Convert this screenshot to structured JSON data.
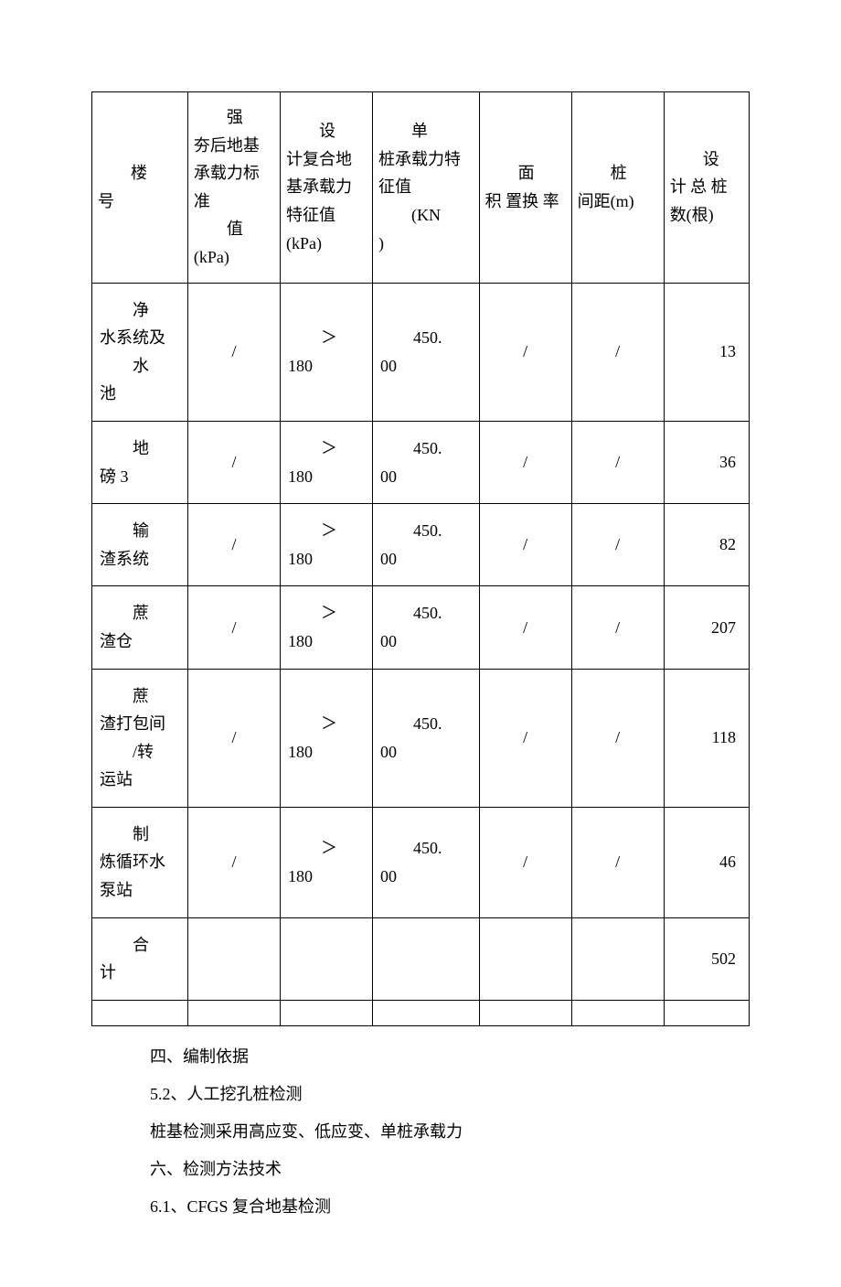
{
  "table": {
    "headers": {
      "col1_line1": "楼",
      "col1_line2": "号",
      "col2_line1": "强",
      "col2_line2": "夯后地基 承载力标准",
      "col2_line3": "值",
      "col2_line4": "(kPa)",
      "col3_line1": "设",
      "col3_line2": "计复合地基承载力 特征值(kPa)",
      "col4_line1": "单",
      "col4_line2": "桩承载力特征值",
      "col4_line3": "(KN",
      "col4_line4": ")",
      "col5_line1": "面",
      "col5_line2": "积 置换 率",
      "col6_line1": "桩",
      "col6_line2": "间距(m)",
      "col7_line1": "设",
      "col7_line2": "计 总 桩 数(根)"
    },
    "rows": [
      {
        "name_line1": "净",
        "name_line2": "水系统及",
        "name_line3": "水",
        "name_line4": "池",
        "c2": "/",
        "c3a": "＞",
        "c3b": "180",
        "c4a": "450.",
        "c4b": "00",
        "c5": "/",
        "c6": "/",
        "c7": "13"
      },
      {
        "name_line1": "地",
        "name_line2": "磅 3",
        "name_line3": "",
        "name_line4": "",
        "c2": "/",
        "c3a": "＞",
        "c3b": "180",
        "c4a": "450.",
        "c4b": "00",
        "c5": "/",
        "c6": "/",
        "c7": "36"
      },
      {
        "name_line1": "输",
        "name_line2": "渣系统",
        "name_line3": "",
        "name_line4": "",
        "c2": "/",
        "c3a": "＞",
        "c3b": "180",
        "c4a": "450.",
        "c4b": "00",
        "c5": "/",
        "c6": "/",
        "c7": "82"
      },
      {
        "name_line1": "蔗",
        "name_line2": "渣仓",
        "name_line3": "",
        "name_line4": "",
        "c2": "/",
        "c3a": "＞",
        "c3b": "180",
        "c4a": "450.",
        "c4b": "00",
        "c5": "/",
        "c6": "/",
        "c7": "207"
      },
      {
        "name_line1": "蔗",
        "name_line2": "渣打包间",
        "name_line3": "/转",
        "name_line4": "运站",
        "c2": "/",
        "c3a": "＞",
        "c3b": "180",
        "c4a": "450.",
        "c4b": "00",
        "c5": "/",
        "c6": "/",
        "c7": "118"
      },
      {
        "name_line1": "制",
        "name_line2": "炼循环水 泵站",
        "name_line3": "",
        "name_line4": "",
        "c2": "/",
        "c3a": "＞",
        "c3b": "180",
        "c4a": "450.",
        "c4b": "00",
        "c5": "/",
        "c6": "/",
        "c7": "46"
      },
      {
        "name_line1": "合",
        "name_line2": "计",
        "name_line3": "",
        "name_line4": "",
        "c2": "",
        "c3a": "",
        "c3b": "",
        "c4a": "",
        "c4b": "",
        "c5": "",
        "c6": "",
        "c7": "502"
      }
    ]
  },
  "paragraphs": {
    "p1": "四、编制依据",
    "p2": "5.2、人工挖孔桩检测",
    "p3": "桩基检测采用高应变、低应变、单桩承载力",
    "p4": "六、检测方法技术",
    "p5": "6.1、CFGS 复合地基检测"
  }
}
